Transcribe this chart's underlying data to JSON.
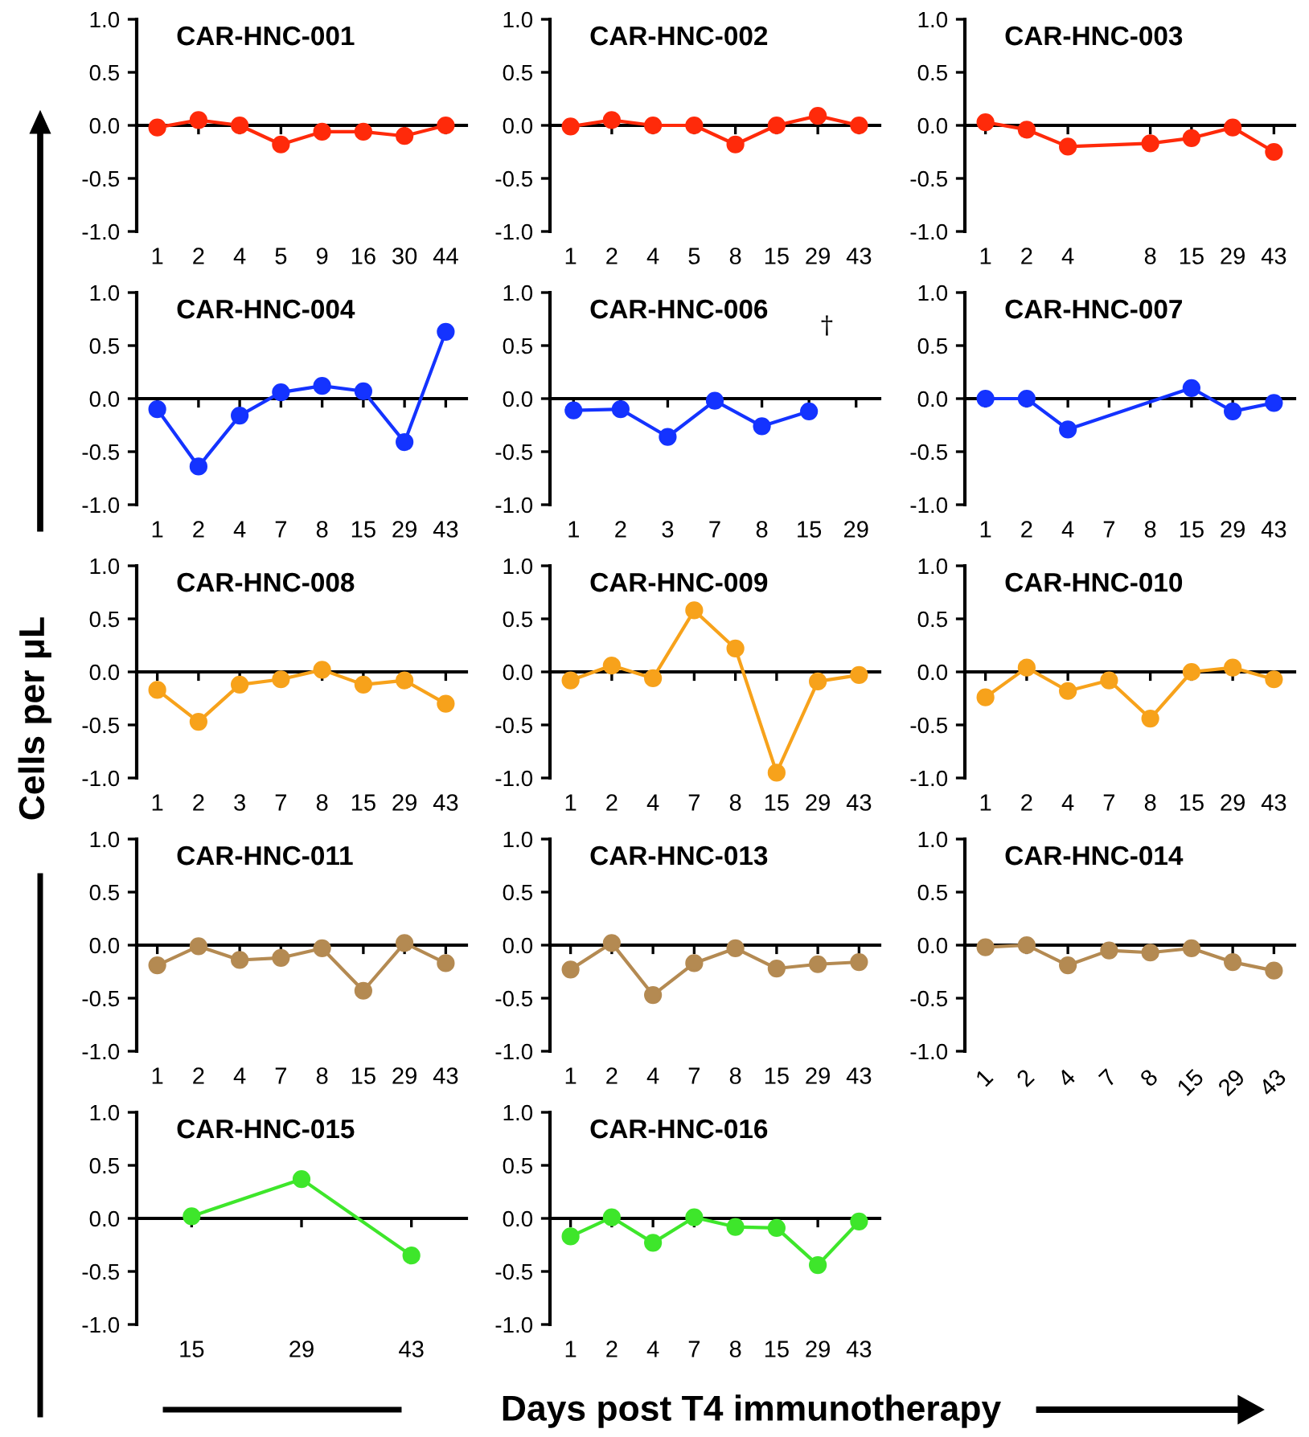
{
  "chart_data": [
    {
      "type": "line",
      "title": "CAR-HNC-001",
      "categories": [
        "1",
        "2",
        "4",
        "5",
        "9",
        "16",
        "30",
        "44"
      ],
      "series": [
        {
          "color": "#ff2a0a",
          "values": [
            -0.02,
            0.05,
            0.0,
            -0.18,
            -0.06,
            -0.06,
            -0.1,
            0.0
          ]
        }
      ],
      "ylim": [
        -1,
        1
      ],
      "yticks": [
        {
          "value": -1,
          "label": "-1.0"
        },
        {
          "value": -0.5,
          "label": "-0.5"
        },
        {
          "value": 0,
          "label": "0.0"
        },
        {
          "value": 0.5,
          "label": "0.5"
        },
        {
          "value": 1,
          "label": "1.0"
        }
      ],
      "marker": "circle",
      "line_style": "solid"
    },
    {
      "type": "line",
      "title": "CAR-HNC-002",
      "categories": [
        "1",
        "2",
        "4",
        "5",
        "8",
        "15",
        "29",
        "43"
      ],
      "series": [
        {
          "color": "#ff2a0a",
          "values": [
            -0.01,
            0.05,
            0.0,
            0.0,
            -0.18,
            0.0,
            0.09,
            0.0
          ]
        }
      ],
      "ylim": [
        -1,
        1
      ],
      "yticks": [
        {
          "value": -1,
          "label": "-1.0"
        },
        {
          "value": -0.5,
          "label": "-0.5"
        },
        {
          "value": 0,
          "label": "0.0"
        },
        {
          "value": 0.5,
          "label": "0.5"
        },
        {
          "value": 1,
          "label": "1.0"
        }
      ],
      "marker": "circle",
      "line_style": "solid"
    },
    {
      "type": "line",
      "title": "CAR-HNC-003",
      "categories": [
        "1",
        "2",
        "4",
        null,
        "8",
        "15",
        "29",
        "43"
      ],
      "series": [
        {
          "color": "#ff2a0a",
          "values": [
            0.03,
            -0.04,
            -0.2,
            null,
            -0.17,
            -0.12,
            -0.02,
            -0.25
          ]
        }
      ],
      "ylim": [
        -1,
        1
      ],
      "yticks": [
        {
          "value": -1,
          "label": "-1.0"
        },
        {
          "value": -0.5,
          "label": "-0.5"
        },
        {
          "value": 0,
          "label": "0.0"
        },
        {
          "value": 0.5,
          "label": "0.5"
        },
        {
          "value": 1,
          "label": "1.0"
        }
      ],
      "marker": "circle",
      "line_style": "solid"
    },
    {
      "type": "line",
      "title": "CAR-HNC-004",
      "categories": [
        "1",
        "2",
        "4",
        "7",
        "8",
        "15",
        "29",
        "43"
      ],
      "series": [
        {
          "color": "#1433ff",
          "values": [
            -0.1,
            -0.64,
            -0.16,
            0.06,
            0.12,
            0.07,
            -0.41,
            0.63
          ]
        }
      ],
      "ylim": [
        -1,
        1
      ],
      "yticks": [
        {
          "value": -1,
          "label": "-1.0"
        },
        {
          "value": -0.5,
          "label": "-0.5"
        },
        {
          "value": 0,
          "label": "0.0"
        },
        {
          "value": 0.5,
          "label": "0.5"
        },
        {
          "value": 1,
          "label": "1.0"
        }
      ],
      "marker": "circle",
      "line_style": "solid"
    },
    {
      "type": "line",
      "title": "CAR-HNC-006",
      "categories": [
        "1",
        "2",
        "3",
        "7",
        "8",
        "15",
        "29"
      ],
      "series": [
        {
          "color": "#1433ff",
          "values": [
            -0.11,
            -0.1,
            -0.36,
            -0.02,
            -0.26,
            -0.12,
            null
          ]
        }
      ],
      "annotations": [
        "†"
      ],
      "ylim": [
        -1,
        1
      ],
      "yticks": [
        {
          "value": -1,
          "label": "-1.0"
        },
        {
          "value": -0.5,
          "label": "-0.5"
        },
        {
          "value": 0,
          "label": "0.0"
        },
        {
          "value": 0.5,
          "label": "0.5"
        },
        {
          "value": 1,
          "label": "1.0"
        }
      ],
      "marker": "circle",
      "line_style": "solid"
    },
    {
      "type": "line",
      "title": "CAR-HNC-007",
      "categories": [
        "1",
        "2",
        "4",
        "7",
        "8",
        "15",
        "29",
        "43"
      ],
      "series": [
        {
          "color": "#1433ff",
          "values": [
            0.0,
            0.0,
            -0.29,
            null,
            null,
            0.1,
            -0.12,
            -0.04
          ]
        }
      ],
      "ylim": [
        -1,
        1
      ],
      "yticks": [
        {
          "value": -1,
          "label": "-1.0"
        },
        {
          "value": -0.5,
          "label": "-0.5"
        },
        {
          "value": 0,
          "label": "0.0"
        },
        {
          "value": 0.5,
          "label": "0.5"
        },
        {
          "value": 1,
          "label": "1.0"
        }
      ],
      "marker": "circle",
      "line_style": "solid"
    },
    {
      "type": "line",
      "title": "CAR-HNC-008",
      "ylabel": "Cells per μL",
      "categories": [
        "1",
        "2",
        "3",
        "7",
        "8",
        "15",
        "29",
        "43"
      ],
      "series": [
        {
          "color": "#f7a21b",
          "values": [
            -0.17,
            -0.47,
            -0.12,
            -0.07,
            0.02,
            -0.12,
            -0.08,
            -0.3
          ]
        }
      ],
      "ylim": [
        -1,
        1
      ],
      "yticks": [
        {
          "value": -1,
          "label": "-1.0"
        },
        {
          "value": -0.5,
          "label": "-0.5"
        },
        {
          "value": 0,
          "label": "0.0"
        },
        {
          "value": 0.5,
          "label": "0.5"
        },
        {
          "value": 1,
          "label": "1.0"
        }
      ],
      "marker": "circle",
      "line_style": "solid"
    },
    {
      "type": "line",
      "title": "CAR-HNC-009",
      "categories": [
        "1",
        "2",
        "4",
        "7",
        "8",
        "15",
        "29",
        "43"
      ],
      "series": [
        {
          "color": "#f7a21b",
          "values": [
            -0.08,
            0.06,
            -0.06,
            0.58,
            0.22,
            -0.95,
            -0.09,
            -0.03
          ]
        }
      ],
      "ylim": [
        -1,
        1
      ],
      "yticks": [
        {
          "value": -1,
          "label": "-1.0"
        },
        {
          "value": -0.5,
          "label": "-0.5"
        },
        {
          "value": 0,
          "label": "0.0"
        },
        {
          "value": 0.5,
          "label": "0.5"
        },
        {
          "value": 1,
          "label": "1.0"
        }
      ],
      "marker": "circle",
      "line_style": "solid"
    },
    {
      "type": "line",
      "title": "CAR-HNC-010",
      "categories": [
        "1",
        "2",
        "4",
        "7",
        "8",
        "15",
        "29",
        "43"
      ],
      "series": [
        {
          "color": "#f7a21b",
          "values": [
            -0.24,
            0.04,
            -0.18,
            -0.08,
            -0.44,
            0.0,
            0.04,
            -0.07
          ]
        }
      ],
      "ylim": [
        -1,
        1
      ],
      "yticks": [
        {
          "value": -1,
          "label": "-1.0"
        },
        {
          "value": -0.5,
          "label": "-0.5"
        },
        {
          "value": 0,
          "label": "0.0"
        },
        {
          "value": 0.5,
          "label": "0.5"
        },
        {
          "value": 1,
          "label": "1.0"
        }
      ],
      "marker": "circle",
      "line_style": "solid"
    },
    {
      "type": "line",
      "title": "CAR-HNC-011",
      "categories": [
        "1",
        "2",
        "4",
        "7",
        "8",
        "15",
        "29",
        "43"
      ],
      "series": [
        {
          "color": "#b48a52",
          "values": [
            -0.19,
            -0.01,
            -0.14,
            -0.12,
            -0.03,
            -0.43,
            0.02,
            -0.17
          ]
        }
      ],
      "ylim": [
        -1,
        1
      ],
      "yticks": [
        {
          "value": -1,
          "label": "-1.0"
        },
        {
          "value": -0.5,
          "label": "-0.5"
        },
        {
          "value": 0,
          "label": "0.0"
        },
        {
          "value": 0.5,
          "label": "0.5"
        },
        {
          "value": 1,
          "label": "1.0"
        }
      ],
      "marker": "circle",
      "line_style": "solid"
    },
    {
      "type": "line",
      "title": "CAR-HNC-013",
      "categories": [
        "1",
        "2",
        "4",
        "7",
        "8",
        "15",
        "29",
        "43"
      ],
      "series": [
        {
          "color": "#b48a52",
          "values": [
            -0.23,
            0.02,
            -0.47,
            -0.17,
            -0.03,
            -0.22,
            -0.18,
            -0.16
          ]
        }
      ],
      "ylim": [
        -1,
        1
      ],
      "yticks": [
        {
          "value": -1,
          "label": "-1.0"
        },
        {
          "value": -0.5,
          "label": "-0.5"
        },
        {
          "value": 0,
          "label": "0.0"
        },
        {
          "value": 0.5,
          "label": "0.5"
        },
        {
          "value": 1,
          "label": "1.0"
        }
      ],
      "marker": "circle",
      "line_style": "solid"
    },
    {
      "type": "line",
      "title": "CAR-HNC-014",
      "categories": [
        "1",
        "2",
        "4",
        "7",
        "8",
        "15",
        "29",
        "43"
      ],
      "series": [
        {
          "color": "#b48a52",
          "values": [
            -0.02,
            0.0,
            -0.19,
            -0.05,
            -0.07,
            -0.03,
            -0.16,
            -0.24
          ]
        }
      ],
      "ylim": [
        -1,
        1
      ],
      "yticks": [
        {
          "value": -1,
          "label": "-1.0"
        },
        {
          "value": -0.5,
          "label": "-0.5"
        },
        {
          "value": 0,
          "label": "0.0"
        },
        {
          "value": 0.5,
          "label": "0.5"
        },
        {
          "value": 1,
          "label": "1.0"
        }
      ],
      "marker": "circle",
      "line_style": "solid"
    },
    {
      "type": "line",
      "title": "CAR-HNC-015",
      "categories": [
        "15",
        "29",
        "43"
      ],
      "series": [
        {
          "color": "#3ee62b",
          "values": [
            0.02,
            0.37,
            -0.35
          ]
        }
      ],
      "ylim": [
        -1,
        1
      ],
      "yticks": [
        {
          "value": -1,
          "label": "-1.0"
        },
        {
          "value": -0.5,
          "label": "-0.5"
        },
        {
          "value": 0,
          "label": "0.0"
        },
        {
          "value": 0.5,
          "label": "0.5"
        },
        {
          "value": 1,
          "label": "1.0"
        }
      ],
      "marker": "circle",
      "line_style": "solid"
    },
    {
      "type": "line",
      "title": "CAR-HNC-016",
      "xlabel": "Days post T4 immunotherapy",
      "categories": [
        "1",
        "2",
        "4",
        "7",
        "8",
        "15",
        "29",
        "43"
      ],
      "series": [
        {
          "color": "#3ee62b",
          "values": [
            -0.17,
            0.01,
            -0.23,
            0.01,
            -0.08,
            -0.09,
            -0.44,
            -0.03
          ]
        }
      ],
      "ylim": [
        -1,
        1
      ],
      "yticks": [
        {
          "value": -1,
          "label": "-1.0"
        },
        {
          "value": -0.5,
          "label": "-0.5"
        },
        {
          "value": 0,
          "label": "0.0"
        },
        {
          "value": 0.5,
          "label": "0.5"
        },
        {
          "value": 1,
          "label": "1.0"
        }
      ],
      "marker": "circle",
      "line_style": "solid"
    }
  ]
}
